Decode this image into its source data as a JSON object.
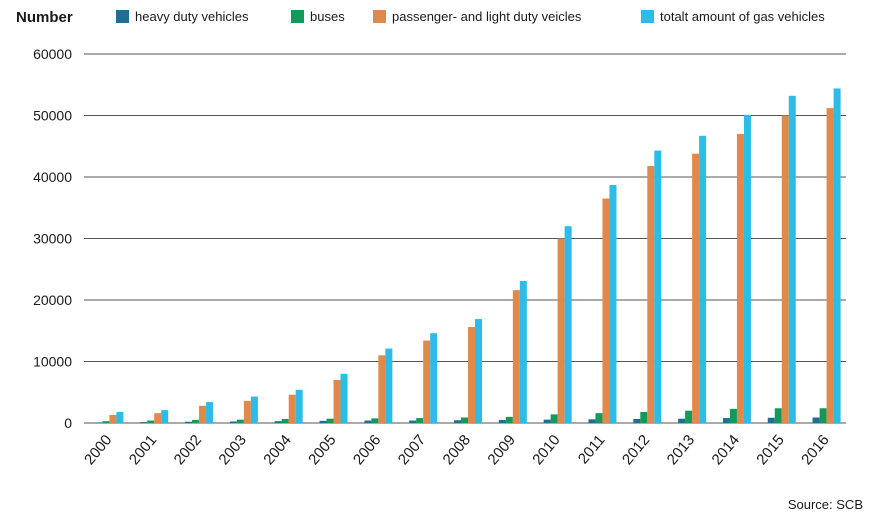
{
  "chart_data": {
    "type": "bar",
    "ylabel": "Number",
    "source": "Source: SCB",
    "ylim": [
      0,
      60000
    ],
    "yticks": [
      0,
      10000,
      20000,
      30000,
      40000,
      50000,
      60000
    ],
    "grid": true,
    "legend_position": "top",
    "categories": [
      "2000",
      "2001",
      "2002",
      "2003",
      "2004",
      "2005",
      "2006",
      "2007",
      "2008",
      "2009",
      "2010",
      "2011",
      "2012",
      "2013",
      "2014",
      "2015",
      "2016"
    ],
    "series": [
      {
        "name": "heavy duty vehicles",
        "color": "#1f6f94",
        "values": [
          100,
          150,
          200,
          250,
          300,
          350,
          400,
          400,
          450,
          500,
          550,
          600,
          650,
          700,
          800,
          850,
          900
        ]
      },
      {
        "name": "buses",
        "color": "#139a5b",
        "values": [
          300,
          400,
          500,
          550,
          650,
          700,
          750,
          800,
          900,
          1000,
          1400,
          1600,
          1800,
          2000,
          2300,
          2400,
          2400
        ]
      },
      {
        "name": "passenger- and light duty veicles",
        "color": "#e0894a",
        "values": [
          1300,
          1600,
          2800,
          3600,
          4600,
          7000,
          11000,
          13400,
          15600,
          21600,
          30000,
          36500,
          41800,
          43800,
          47000,
          50000,
          51200
        ]
      },
      {
        "name": "totalt amount of gas vehicles",
        "color": "#2cbce8",
        "values": [
          1800,
          2100,
          3400,
          4300,
          5400,
          8000,
          12100,
          14600,
          16900,
          23100,
          32000,
          38700,
          44300,
          46700,
          50100,
          53200,
          54400
        ]
      }
    ]
  }
}
